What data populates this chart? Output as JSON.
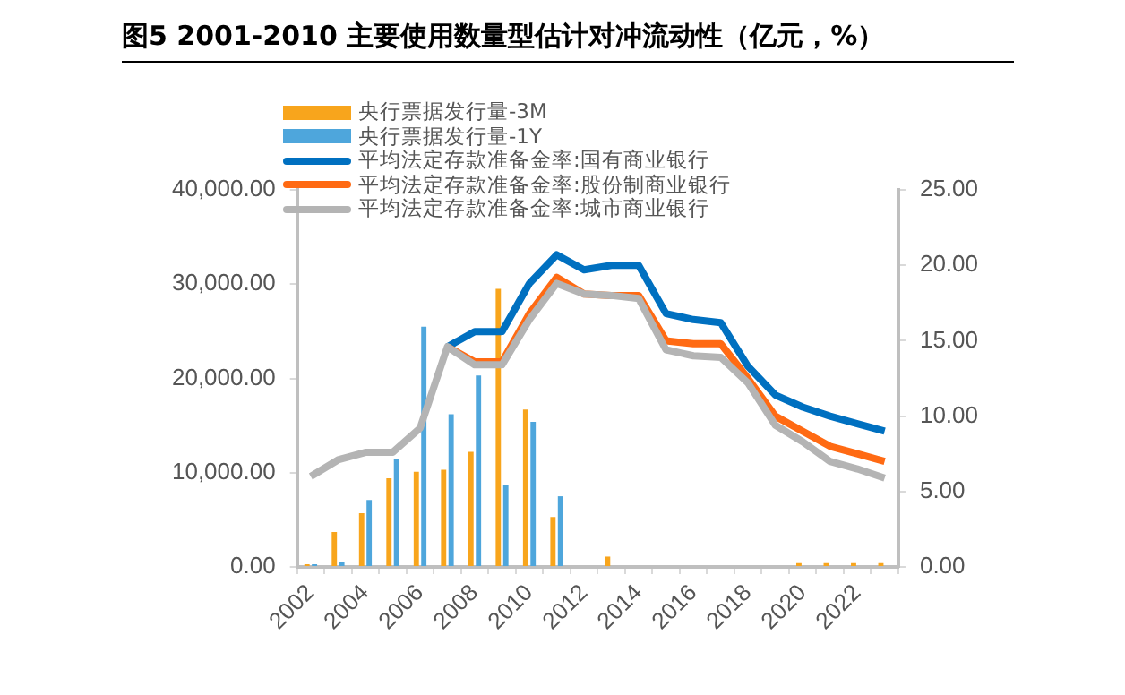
{
  "chart_data": {
    "type": "bar",
    "title": "图5  2001-2010 主要使用数量型估计对冲流动性（亿元，%）",
    "categories": [
      "2002",
      null,
      "2004",
      null,
      "2006",
      null,
      "2008",
      null,
      "2010",
      null,
      "2012",
      null,
      "2014",
      null,
      "2016",
      null,
      "2018",
      null,
      "2020",
      null,
      "2022",
      null
    ],
    "series": [
      {
        "name": "央行票据发行量-3M",
        "color": "#f8a51c",
        "values": [
          300,
          3700,
          5700,
          9400,
          10100,
          10300,
          12200,
          29500,
          16700,
          5300,
          null,
          1100,
          null,
          null,
          null,
          null,
          null,
          null,
          400,
          400,
          400,
          400
        ]
      },
      {
        "name": "央行票据发行量-1Y",
        "color": "#4ea6dc",
        "values": [
          300,
          500,
          7100,
          11400,
          25500,
          16200,
          20300,
          8700,
          15400,
          7500,
          null,
          null,
          null,
          null,
          null,
          null,
          null,
          null,
          null,
          null,
          null,
          null
        ]
      },
      {
        "name": "平均法定存款准备金率:国有商业银行",
        "type": "line",
        "axis": "y2",
        "color": "#0070c0",
        "values": [
          null,
          null,
          null,
          null,
          null,
          14.6,
          15.6,
          15.6,
          18.8,
          20.7,
          19.7,
          20.0,
          20.0,
          16.8,
          16.4,
          16.2,
          13.3,
          11.4,
          10.6,
          10.0,
          9.5,
          9.0
        ]
      },
      {
        "name": "平均法定存款准备金率:股份制商业银行",
        "type": "line",
        "axis": "y2",
        "color": "#ff6a13",
        "values": [
          null,
          null,
          null,
          null,
          null,
          14.6,
          13.6,
          13.6,
          16.8,
          19.2,
          18.1,
          18.0,
          18.0,
          15.0,
          14.8,
          14.8,
          12.5,
          10.0,
          9.0,
          8.0,
          7.5,
          7.0
        ]
      },
      {
        "name": "平均法定存款准备金率:城市商业银行",
        "type": "line",
        "axis": "y2",
        "color": "#b4b4b4",
        "values": [
          6.0,
          7.1,
          7.6,
          7.6,
          9.2,
          14.6,
          13.4,
          13.4,
          16.4,
          18.8,
          18.1,
          18.0,
          17.8,
          14.4,
          14.0,
          13.9,
          12.2,
          9.4,
          8.3,
          7.0,
          6.5,
          5.9
        ]
      }
    ],
    "ylim": [
      0,
      40000
    ],
    "yticks": [
      {
        "value": 0,
        "label": "0.00"
      },
      {
        "value": 10000,
        "label": "10,000.00"
      },
      {
        "value": 20000,
        "label": "20,000.00"
      },
      {
        "value": 30000,
        "label": "30,000.00"
      },
      {
        "value": 40000,
        "label": "40,000.00"
      }
    ],
    "y2lim": [
      0,
      25
    ],
    "y2ticks": [
      {
        "value": 0,
        "label": "0.00"
      },
      {
        "value": 5,
        "label": "5.00"
      },
      {
        "value": 10,
        "label": "10.00"
      },
      {
        "value": 15,
        "label": "15.00"
      },
      {
        "value": 20,
        "label": "20.00"
      },
      {
        "value": 25,
        "label": "25.00"
      }
    ],
    "grid": false,
    "legend": "top left"
  }
}
